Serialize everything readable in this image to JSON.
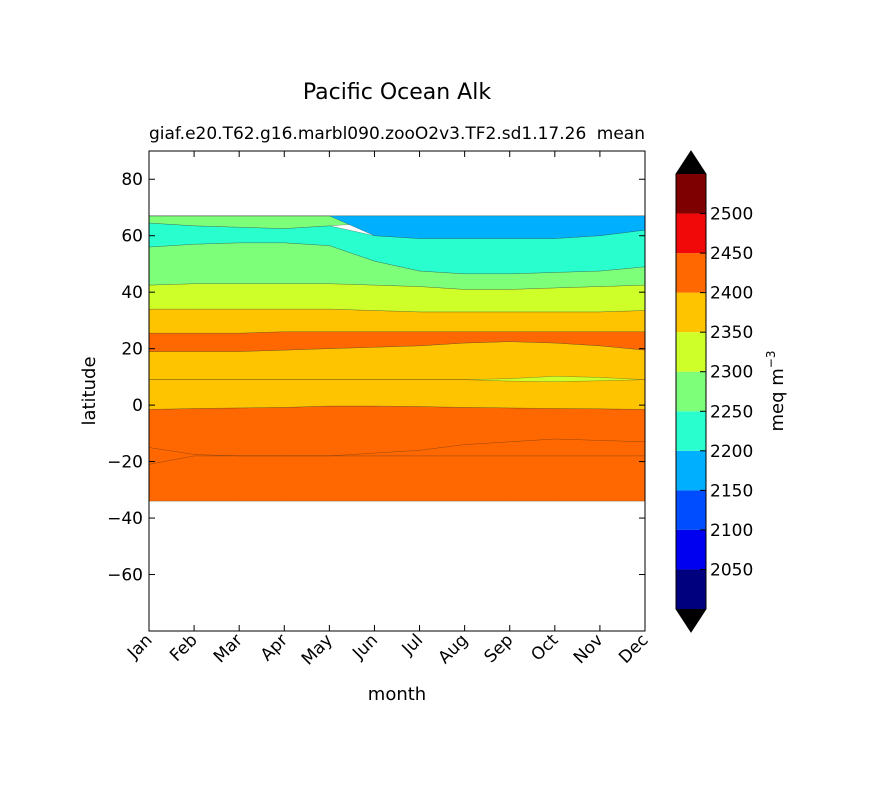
{
  "chart_data": {
    "type": "heatmap",
    "title": "Pacific Ocean Alk",
    "subtitle_left": "giaf.e20.T62.g16.marbl090.zooO2v3.TF2.sd1.17.26",
    "subtitle_right": "mean",
    "xlabel": "month",
    "ylabel": "latitude",
    "x_categories": [
      "Jan",
      "Feb",
      "Mar",
      "Apr",
      "May",
      "Jun",
      "Jul",
      "Aug",
      "Sep",
      "Oct",
      "Nov",
      "Dec"
    ],
    "ylim": [
      -80,
      90
    ],
    "yticks": [
      80,
      60,
      40,
      20,
      0,
      -20,
      -40,
      -60
    ],
    "data_lat_range": [
      -34,
      67
    ],
    "grid": false,
    "colorbar": {
      "label": "meq m",
      "label_exponent": "−3",
      "levels": [
        2000,
        2050,
        2100,
        2150,
        2200,
        2250,
        2300,
        2350,
        2400,
        2450,
        2500,
        2550
      ],
      "tick_labels": [
        2050,
        2100,
        2150,
        2200,
        2250,
        2300,
        2350,
        2400,
        2450,
        2500
      ],
      "colors": [
        "#00007f",
        "#0000f1",
        "#004cff",
        "#00b0ff",
        "#29ffce",
        "#7dff7a",
        "#ceff29",
        "#ffc400",
        "#ff6800",
        "#f10808",
        "#7f0000"
      ],
      "extend": "both",
      "extend_color": "#000000"
    },
    "bands": [
      {
        "level_range": [
          2350,
          2400
        ],
        "y_bottom": [
          -34,
          -34,
          -34,
          -34,
          -34,
          -34,
          -34,
          -34,
          -34,
          -34,
          -34,
          -34
        ],
        "y_top": [
          -1.5,
          -1.2,
          -1.0,
          -0.8,
          -0.3,
          -0.3,
          -0.5,
          -0.8,
          -1.0,
          -1.2,
          -1.3,
          -1.5
        ]
      },
      {
        "level_range": [
          2300,
          2350
        ],
        "y_bottom": [
          -1.5,
          -1.2,
          -1.0,
          -0.8,
          -0.3,
          -0.3,
          -0.5,
          -0.8,
          -1.0,
          -1.2,
          -1.3,
          -1.5
        ],
        "y_top": [
          19,
          19,
          19,
          19.5,
          20,
          20.5,
          21,
          22,
          22.5,
          22,
          21,
          19.5
        ]
      },
      {
        "level_range": [
          2350,
          2400
        ],
        "y_bottom": [
          19,
          19,
          19,
          19.5,
          20,
          20.5,
          21,
          22,
          22.5,
          22,
          21,
          19.5
        ],
        "y_top": [
          25.5,
          25.5,
          25.5,
          26,
          26,
          26,
          26,
          26,
          26,
          26,
          26,
          26
        ]
      },
      {
        "level_range": [
          2300,
          2350
        ],
        "y_bottom": [
          25.5,
          25.5,
          25.5,
          26,
          26,
          26,
          26,
          26,
          26,
          26,
          26,
          26
        ],
        "y_top": [
          34,
          34,
          34,
          34,
          34,
          33.5,
          33,
          33,
          33,
          33,
          33,
          33.5
        ]
      },
      {
        "level_range": [
          2250,
          2300
        ],
        "y_bottom": [
          34,
          34,
          34,
          34,
          34,
          33.5,
          33,
          33,
          33,
          33,
          33,
          33.5
        ],
        "y_top": [
          42.5,
          43,
          43,
          43,
          43,
          42.5,
          42,
          41,
          41,
          41.5,
          42,
          42.5
        ]
      },
      {
        "level_range": [
          2200,
          2250
        ],
        "y_bottom": [
          42.5,
          43,
          43,
          43,
          43,
          42.5,
          42,
          41,
          41,
          41.5,
          42,
          42.5
        ],
        "y_top": [
          56,
          57,
          57.5,
          57.5,
          56.5,
          51,
          47.5,
          46.5,
          46.5,
          47,
          47.5,
          49
        ]
      },
      {
        "level_range": [
          2150,
          2200
        ],
        "y_bottom": [
          56,
          57,
          57.5,
          57.5,
          56.5,
          51,
          47.5,
          46.5,
          46.5,
          47,
          47.5,
          49
        ],
        "y_top": [
          64.5,
          63.5,
          63,
          62.5,
          63.5,
          60,
          59,
          59,
          59,
          59,
          60,
          62
        ]
      },
      {
        "level_range": [
          2200,
          2250
        ],
        "y_bottom": [
          64.5,
          63.5,
          63,
          62.5,
          63.5,
          64.5,
          65,
          65.5,
          66,
          66.5,
          66.8,
          67
        ],
        "y_top": [
          67,
          67,
          67,
          67,
          67,
          67,
          67,
          67,
          67,
          67,
          67,
          67
        ]
      },
      {
        "level_range": [
          2100,
          2150
        ],
        "y_bottom": [
          67,
          67,
          67,
          67,
          67,
          60,
          59,
          59,
          59,
          59,
          60,
          62
        ],
        "y_top": [
          67,
          67,
          67,
          67,
          67,
          67,
          67,
          67,
          67,
          67,
          67,
          67
        ]
      },
      {
        "level_range": [
          2350,
          2400
        ],
        "y_bottom": [
          -21,
          -18,
          -18,
          -18,
          -18,
          -18,
          -18,
          -18,
          -18,
          -18,
          -18,
          -18
        ],
        "y_top": [
          -15,
          -17.5,
          -18,
          -18,
          -18,
          -17,
          -16,
          -14,
          -13,
          -12,
          -12.5,
          -13
        ]
      },
      {
        "level_range": [
          2250,
          2300
        ],
        "y_bottom": [
          9,
          9,
          9,
          9,
          9,
          9,
          9,
          9,
          8.5,
          8.3,
          8.6,
          9
        ],
        "y_top": [
          9,
          9,
          9,
          9,
          9,
          9,
          9,
          9,
          9.4,
          10.2,
          9.8,
          9
        ]
      }
    ]
  }
}
